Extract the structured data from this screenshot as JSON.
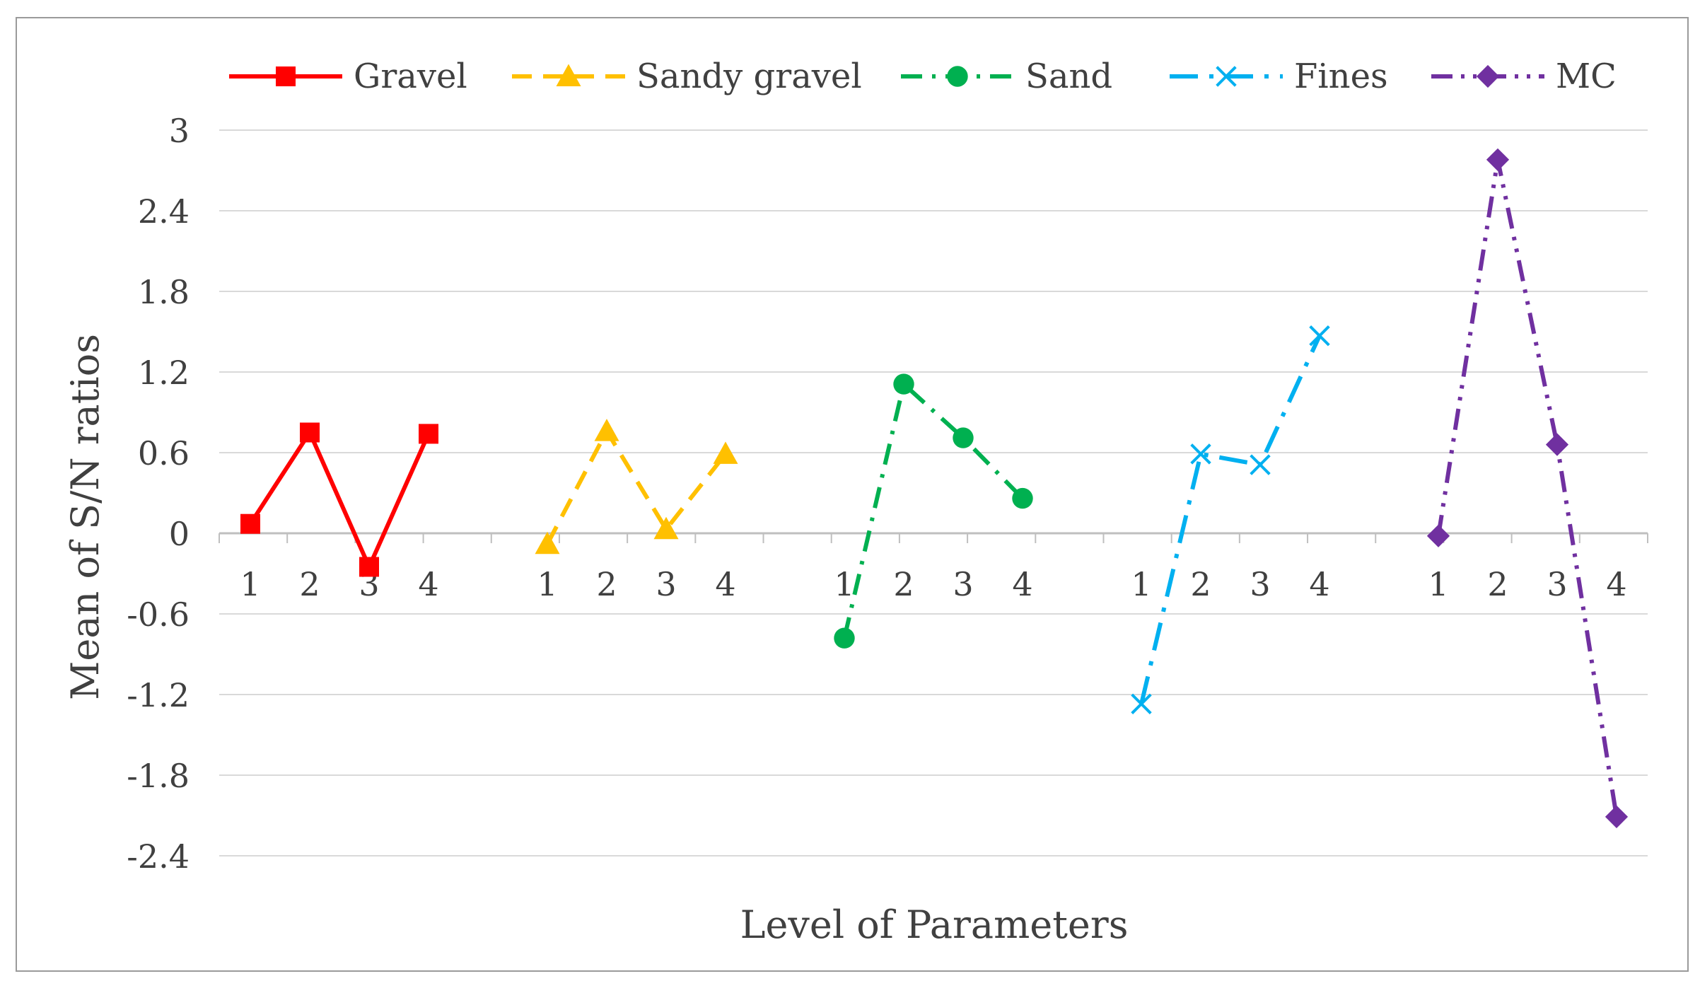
{
  "chart_data": {
    "type": "line",
    "title": "",
    "xlabel": "Level of Parameters",
    "ylabel": "Mean of S/N ratios",
    "ylim": [
      -2.4,
      3
    ],
    "yticks": [
      "3",
      "2.4",
      "1.8",
      "1.2",
      "0.6",
      "0",
      "-0.6",
      "-1.2",
      "-1.8",
      "-2.4"
    ],
    "grid": true,
    "legend_position": "top",
    "levels": [
      "1",
      "2",
      "3",
      "4"
    ],
    "series": [
      {
        "name": "Gravel",
        "color": "#ff0000",
        "marker": "square",
        "dash": "solid",
        "values": [
          0.07,
          0.75,
          -0.25,
          0.74
        ]
      },
      {
        "name": "Sandy gravel",
        "color": "#ffc000",
        "marker": "triangle",
        "dash": "dash",
        "values": [
          -0.08,
          0.76,
          0.03,
          0.59
        ]
      },
      {
        "name": "Sand",
        "color": "#00b050",
        "marker": "circle",
        "dash": "dashdot",
        "values": [
          -0.78,
          1.11,
          0.71,
          0.26
        ]
      },
      {
        "name": "Fines",
        "color": "#00b0f0",
        "marker": "x",
        "dash": "longdashdot",
        "values": [
          -1.27,
          0.59,
          0.51,
          1.47
        ]
      },
      {
        "name": "MC",
        "color": "#7030a0",
        "marker": "diamond",
        "dash": "dashdotdot",
        "values": [
          -0.02,
          2.78,
          0.66,
          -2.11
        ]
      }
    ]
  }
}
